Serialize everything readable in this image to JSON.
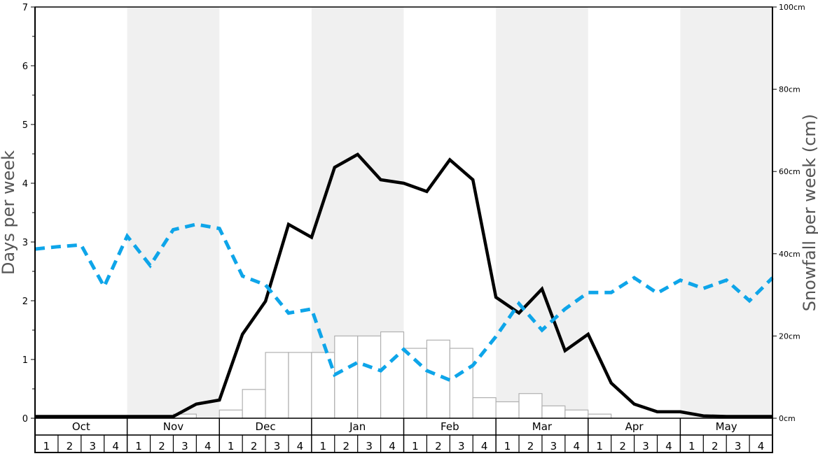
{
  "chart_data": {
    "type": "bar",
    "ylabel_left": "Days per week",
    "ylabel_right": "Snowfall per week (cm)",
    "ylim_left": [
      0,
      7
    ],
    "ylim_right": [
      0,
      100
    ],
    "left_ticks": [
      "0",
      "1",
      "2",
      "3",
      "4",
      "5",
      "6",
      "7"
    ],
    "right_ticks": [
      "0cm",
      "20cm",
      "40cm",
      "60cm",
      "80cm",
      "100cm"
    ],
    "months": [
      "Oct",
      "Nov",
      "Dec",
      "Jan",
      "Feb",
      "Mar",
      "Apr",
      "May"
    ],
    "shaded_months": [
      "Nov",
      "Jan",
      "Mar",
      "May"
    ],
    "weeks": [
      "1",
      "2",
      "3",
      "4"
    ],
    "grid": false,
    "snowfall_bars_cm": [
      0,
      0,
      0,
      0,
      0,
      0,
      1,
      0,
      2,
      7,
      16,
      16,
      16,
      20,
      20,
      21,
      17,
      19,
      17,
      5,
      4,
      6,
      3,
      2,
      1,
      0,
      0,
      0,
      0,
      0,
      0,
      0
    ],
    "line_series": [
      {
        "style": "solid",
        "color": "#000000",
        "axis": "left",
        "values": [
          0.03,
          0.03,
          0.03,
          0.03,
          0.03,
          0.03,
          0.03,
          0.24,
          0.31,
          1.43,
          1.99,
          3.3,
          3.08,
          4.27,
          4.49,
          4.06,
          4.0,
          3.86,
          4.4,
          4.06,
          2.06,
          1.79,
          2.2,
          1.15,
          1.43,
          0.6,
          0.24,
          0.11,
          0.11,
          0.04,
          0.03,
          0.03,
          0.03
        ]
      },
      {
        "style": "dashed",
        "color": "#0ea5e9",
        "axis": "left",
        "values": [
          2.88,
          2.92,
          2.95,
          2.24,
          3.1,
          2.6,
          3.21,
          3.3,
          3.23,
          2.42,
          2.27,
          1.79,
          1.86,
          0.74,
          0.95,
          0.81,
          1.17,
          0.81,
          0.65,
          0.9,
          1.39,
          1.95,
          1.5,
          1.86,
          2.14,
          2.14,
          2.39,
          2.13,
          2.35,
          2.21,
          2.35,
          2.0,
          2.39
        ]
      }
    ],
    "colors": {
      "shade": "#f0f0f0",
      "bar_fill": "#ffffff",
      "bar_stroke": "#b0b0b0",
      "dashed": "#0ea5e9",
      "axis_label": "#555555"
    }
  }
}
